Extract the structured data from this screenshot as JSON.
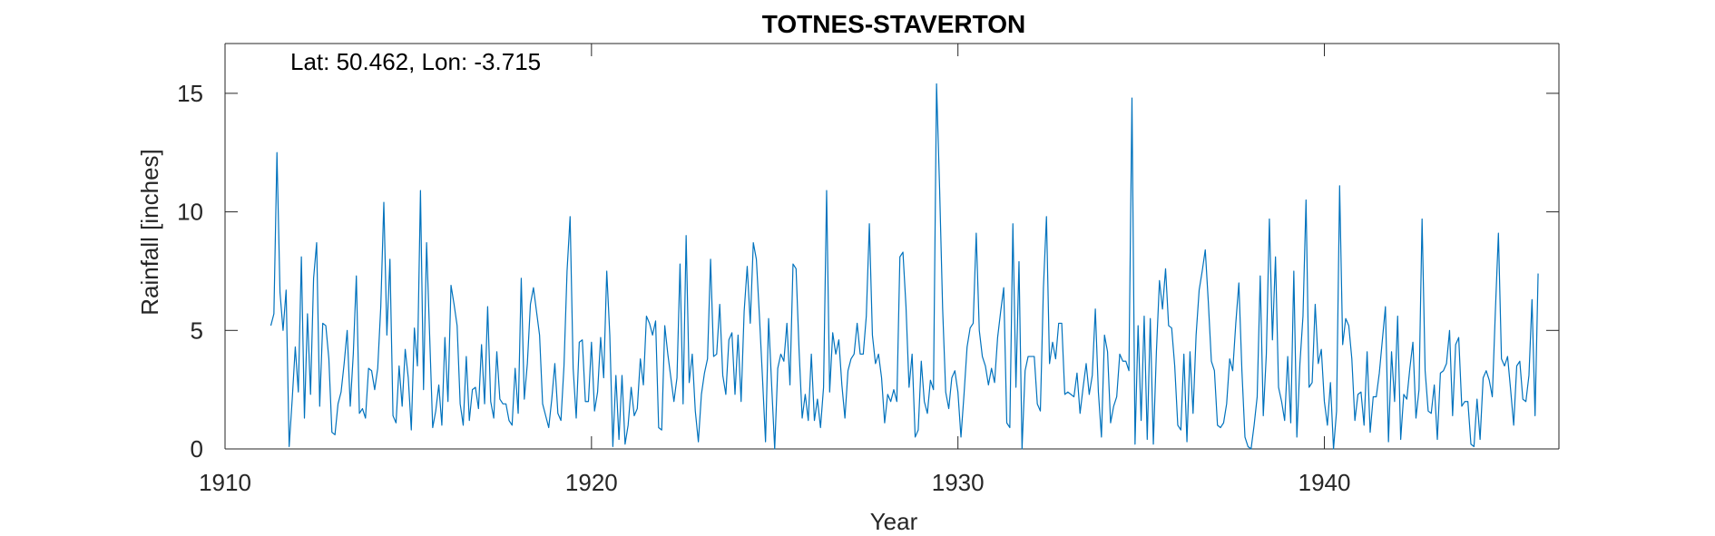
{
  "chart_data": {
    "type": "line",
    "title": "TOTNES-STAVERTON",
    "annotation": "Lat: 50.462, Lon: -3.715",
    "xlabel": "Year",
    "ylabel": "Rainfall [inches]",
    "xlim": [
      1910,
      1946.4
    ],
    "ylim": [
      0,
      17.1
    ],
    "xticks": [
      1910,
      1920,
      1930,
      1940
    ],
    "yticks": [
      0,
      5,
      10,
      15
    ],
    "grid": false,
    "line_color": "#0072BD",
    "x_start": 1911.25,
    "x_step": 0.08333,
    "series": [
      {
        "values": [
          5.2,
          5.7,
          12.5,
          6.6,
          5.0,
          6.7,
          0.1,
          2.1,
          4.3,
          2.4,
          8.1,
          1.3,
          5.7,
          2.3,
          7.2,
          8.7,
          1.8,
          5.3,
          5.2,
          3.8,
          0.7,
          0.6,
          1.9,
          2.4,
          3.6,
          5.0,
          1.8,
          4.0,
          7.3,
          1.5,
          1.7,
          1.3,
          3.4,
          3.3,
          2.5,
          3.4,
          6.0,
          10.4,
          4.8,
          8.0,
          1.4,
          1.1,
          3.5,
          1.8,
          4.2,
          3.0,
          0.8,
          5.1,
          3.5,
          10.9,
          2.5,
          8.7,
          4.8,
          0.9,
          1.6,
          2.7,
          1.0,
          4.7,
          2.0,
          6.9,
          6.1,
          5.2,
          1.9,
          1.0,
          3.9,
          1.2,
          2.5,
          2.6,
          1.7,
          4.4,
          1.9,
          6.0,
          2.0,
          1.3,
          4.1,
          2.1,
          1.9,
          1.9,
          1.2,
          1.0,
          3.4,
          1.5,
          7.2,
          2.1,
          3.6,
          6.1,
          6.8,
          5.8,
          4.8,
          1.9,
          1.4,
          0.9,
          2.1,
          3.6,
          1.5,
          1.2,
          3.5,
          7.5,
          9.8,
          3.4,
          1.3,
          4.5,
          4.6,
          2.0,
          2.0,
          4.5,
          1.6,
          2.4,
          4.7,
          3.0,
          7.5,
          4.8,
          0.1,
          3.1,
          0.4,
          3.1,
          0.2,
          1.0,
          2.6,
          1.4,
          1.7,
          3.8,
          2.7,
          5.6,
          5.3,
          4.8,
          5.4,
          0.9,
          0.8,
          5.2,
          4.0,
          3.0,
          2.0,
          3.0,
          7.8,
          1.9,
          9.0,
          2.8,
          4.0,
          1.6,
          0.3,
          2.3,
          3.2,
          3.8,
          8.0,
          3.9,
          4.0,
          6.1,
          3.1,
          2.3,
          4.6,
          4.9,
          2.3,
          4.8,
          2.0,
          5.8,
          7.7,
          5.3,
          8.7,
          8.0,
          5.6,
          3.0,
          0.3,
          5.5,
          2.7,
          0.0,
          3.4,
          4.0,
          3.7,
          5.3,
          2.7,
          7.8,
          7.6,
          4.1,
          1.3,
          2.3,
          1.2,
          4.0,
          1.2,
          2.1,
          0.9,
          2.6,
          10.9,
          2.4,
          4.9,
          4.0,
          4.6,
          2.7,
          1.3,
          3.3,
          3.8,
          4.0,
          5.3,
          4.0,
          4.0,
          5.6,
          9.5,
          4.8,
          3.6,
          4.0,
          3.0,
          1.1,
          2.3,
          2.0,
          2.5,
          2.0,
          8.1,
          8.3,
          6.0,
          2.6,
          4.0,
          0.5,
          0.8,
          3.7,
          2.0,
          1.5,
          2.9,
          2.5,
          15.4,
          11.0,
          5.9,
          2.4,
          1.7,
          3.0,
          3.3,
          2.4,
          0.5,
          2.3,
          4.3,
          5.1,
          5.3,
          9.1,
          5.0,
          3.9,
          3.5,
          2.7,
          3.4,
          2.8,
          4.7,
          5.8,
          6.8,
          1.1,
          0.9,
          9.5,
          2.6,
          7.9,
          0.0,
          3.3,
          3.9,
          3.9,
          3.9,
          1.9,
          1.6,
          6.8,
          9.8,
          3.6,
          4.5,
          3.8,
          5.3,
          5.3,
          2.3,
          2.4,
          2.3,
          2.2,
          3.2,
          1.5,
          2.6,
          3.6,
          2.3,
          3.1,
          5.9,
          2.4,
          0.5,
          4.8,
          4.1,
          1.1,
          1.8,
          2.2,
          4.0,
          3.7,
          3.7,
          3.3,
          14.8,
          0.2,
          5.2,
          1.2,
          5.6,
          0.4,
          5.5,
          0.2,
          4.1,
          7.1,
          5.9,
          7.6,
          5.2,
          5.1,
          3.5,
          1.0,
          0.8,
          4.0,
          0.3,
          4.1,
          1.5,
          4.8,
          6.7,
          7.5,
          8.4,
          6.2,
          3.7,
          3.3,
          1.0,
          0.9,
          1.1,
          1.9,
          3.8,
          3.3,
          5.3,
          7.0,
          3.3,
          0.5,
          0.1,
          0.0,
          1.0,
          2.2,
          7.3,
          1.4,
          4.0,
          9.7,
          4.6,
          8.1,
          2.6,
          2.0,
          1.2,
          3.9,
          1.1,
          7.5,
          0.5,
          3.6,
          5.6,
          10.5,
          2.6,
          2.8,
          6.1,
          3.6,
          4.2,
          2.0,
          1.0,
          2.8,
          0.0,
          1.6,
          11.1,
          4.4,
          5.5,
          5.2,
          3.8,
          1.2,
          2.3,
          2.4,
          1.0,
          4.1,
          0.7,
          2.2,
          2.2,
          3.2,
          4.6,
          6.0,
          0.3,
          4.1,
          2.0,
          5.6,
          0.4,
          2.3,
          2.1,
          3.4,
          4.5,
          1.3,
          2.5,
          9.7,
          3.3,
          1.6,
          1.5,
          2.7,
          0.4,
          3.2,
          3.3,
          3.6,
          5.0,
          1.4,
          4.4,
          4.7,
          1.8,
          2.0,
          2.0,
          0.2,
          0.1,
          2.1,
          0.4,
          3.0,
          3.3,
          2.9,
          2.2,
          5.8,
          9.1,
          3.8,
          3.5,
          3.9,
          2.5,
          1.0,
          3.5,
          3.7,
          2.1,
          2.0,
          3.1,
          6.3,
          1.4,
          7.4
        ]
      }
    ]
  }
}
